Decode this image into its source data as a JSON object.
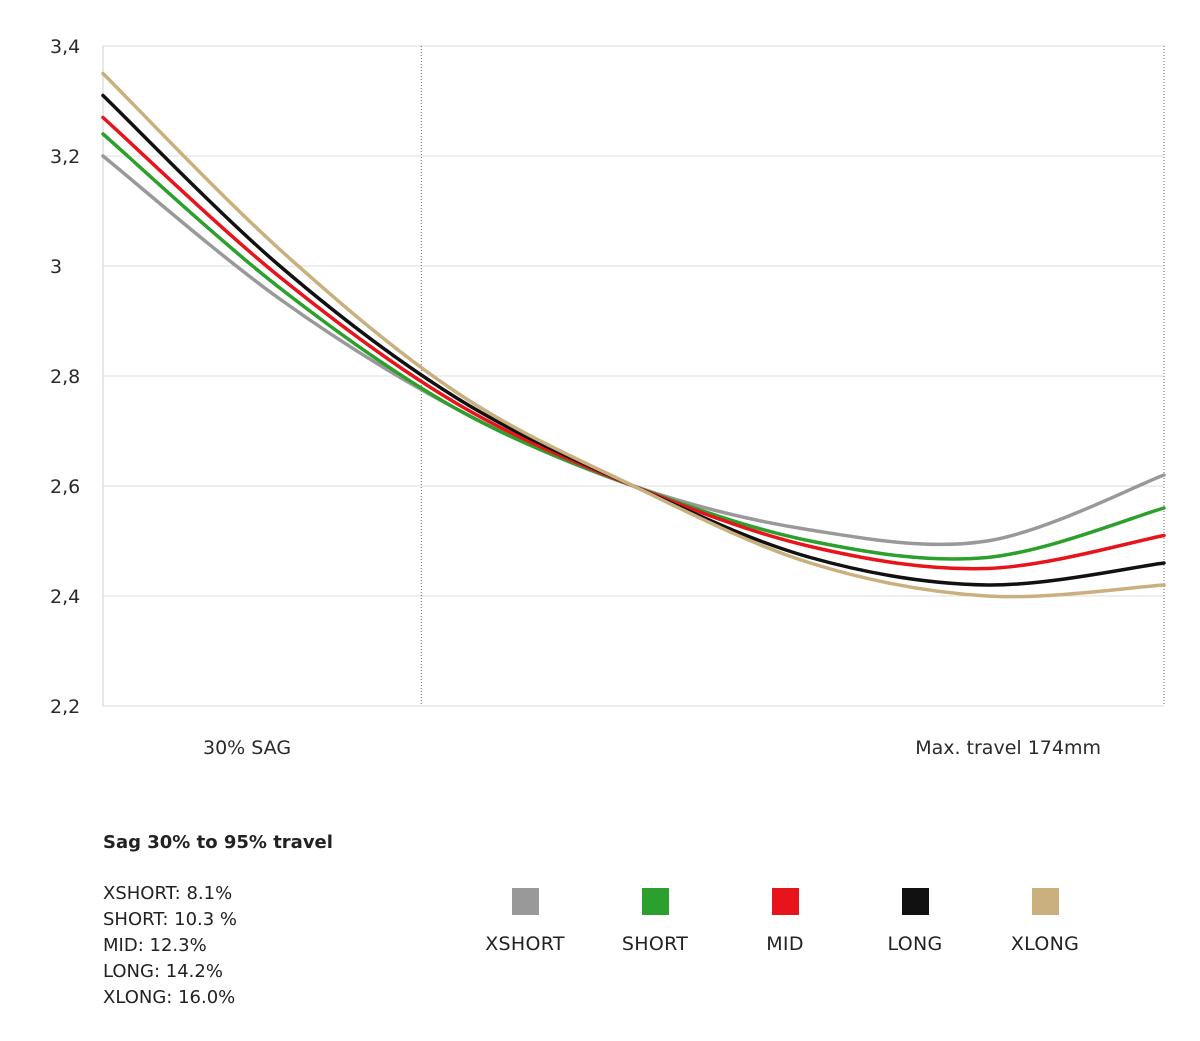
{
  "chart_data": {
    "type": "line",
    "title": "",
    "xlabel": "",
    "ylabel": "",
    "ylim": [
      2.2,
      3.4
    ],
    "yticks": [
      "3,4",
      "3,2",
      "3",
      "2,8",
      "2,6",
      "2,4",
      "2,2"
    ],
    "ytick_values": [
      3.4,
      3.2,
      3.0,
      2.8,
      2.6,
      2.4,
      2.2
    ],
    "xlim": [
      0,
      174
    ],
    "x_markers": [
      {
        "label": "30% SAG",
        "x": 52.2
      },
      {
        "label": "Max. travel 174mm",
        "x": 174
      }
    ],
    "x": [
      0,
      29,
      58,
      87,
      116,
      145,
      174
    ],
    "series": [
      {
        "name": "XSHORT",
        "color": "#999999",
        "values": [
          3.2,
          2.94,
          2.74,
          2.6,
          2.52,
          2.5,
          2.62
        ]
      },
      {
        "name": "SHORT",
        "color": "#2ca02c",
        "values": [
          3.24,
          2.96,
          2.74,
          2.6,
          2.5,
          2.47,
          2.56
        ]
      },
      {
        "name": "MID",
        "color": "#e8141c",
        "values": [
          3.27,
          2.98,
          2.75,
          2.6,
          2.49,
          2.45,
          2.51
        ]
      },
      {
        "name": "LONG",
        "color": "#111111",
        "values": [
          3.31,
          3.0,
          2.76,
          2.6,
          2.47,
          2.42,
          2.46
        ]
      },
      {
        "name": "XLONG",
        "color": "#c9b07e",
        "values": [
          3.35,
          3.03,
          2.77,
          2.6,
          2.46,
          2.4,
          2.42
        ]
      }
    ]
  },
  "summary": {
    "title": "Sag 30% to 95% travel",
    "lines": [
      "XSHORT: 8.1%",
      "SHORT: 10.3 %",
      "MID: 12.3%",
      "LONG: 14.2%",
      "XLONG: 16.0%"
    ]
  },
  "legend": {
    "items": [
      {
        "label": "XSHORT",
        "color": "#999999"
      },
      {
        "label": "SHORT",
        "color": "#2ca02c"
      },
      {
        "label": "MID",
        "color": "#e8141c"
      },
      {
        "label": "LONG",
        "color": "#111111"
      },
      {
        "label": "XLONG",
        "color": "#c9b07e"
      }
    ]
  }
}
